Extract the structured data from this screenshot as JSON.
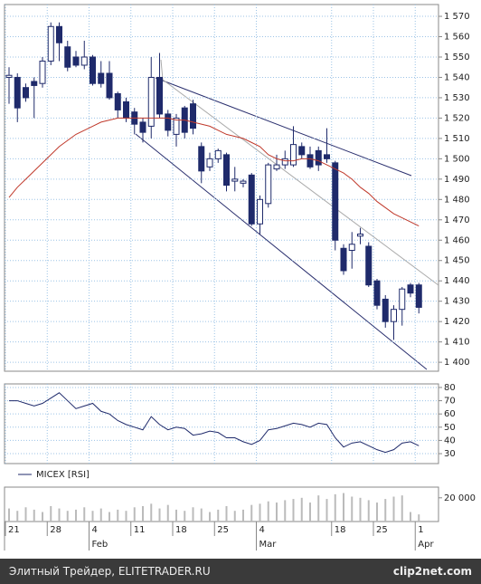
{
  "chart_data": [
    {
      "type": "candlestick",
      "color": "#1f2a6b",
      "open": [
        1540,
        1540,
        1535,
        1538,
        1537,
        1548,
        1565,
        1555,
        1550,
        1546,
        1550,
        1542,
        1542,
        1532,
        1528,
        1523,
        1518,
        1516,
        1540,
        1522,
        1512,
        1525,
        1527,
        1506,
        1496,
        1500,
        1502,
        1489,
        1488,
        1492,
        1468,
        1478,
        1495,
        1497,
        1497,
        1506,
        1502,
        1504,
        1502,
        1498,
        1456,
        1455,
        1462,
        1457,
        1440,
        1431,
        1420,
        1426,
        1438,
        1438
      ],
      "high": [
        1545,
        1542,
        1537,
        1540,
        1550,
        1567,
        1567,
        1558,
        1553,
        1558,
        1551,
        1548,
        1548,
        1533,
        1530,
        1525,
        1520,
        1550,
        1552,
        1524,
        1522,
        1526,
        1529,
        1508,
        1503,
        1505,
        1503,
        1496,
        1490,
        1493,
        1482,
        1498,
        1502,
        1504,
        1516,
        1508,
        1506,
        1506,
        1515,
        1499,
        1458,
        1464,
        1466,
        1459,
        1441,
        1433,
        1428,
        1437,
        1439,
        1439
      ],
      "low": [
        1527,
        1518,
        1528,
        1520,
        1535,
        1546,
        1548,
        1543,
        1545,
        1544,
        1536,
        1535,
        1529,
        1520,
        1518,
        1512,
        1508,
        1510,
        1520,
        1511,
        1506,
        1510,
        1512,
        1488,
        1494,
        1498,
        1484,
        1484,
        1486,
        1467,
        1463,
        1476,
        1494,
        1495,
        1496,
        1500,
        1495,
        1494,
        1498,
        1455,
        1443,
        1446,
        1458,
        1437,
        1426,
        1417,
        1411,
        1418,
        1432,
        1424
      ],
      "close": [
        1541,
        1525,
        1530,
        1536,
        1548,
        1565,
        1557,
        1545,
        1546,
        1550,
        1537,
        1537,
        1530,
        1524,
        1520,
        1517,
        1513,
        1540,
        1522,
        1514,
        1520,
        1513,
        1515,
        1494,
        1500,
        1504,
        1487,
        1490,
        1489,
        1468,
        1480,
        1497,
        1497,
        1500,
        1507,
        1502,
        1496,
        1497,
        1500,
        1460,
        1445,
        1458,
        1463,
        1438,
        1428,
        1420,
        1426,
        1436,
        1434,
        1427
      ],
      "ma": {
        "color": "#c0392b",
        "values": [
          1481,
          1486,
          1490,
          1494,
          1498,
          1502,
          1506,
          1509,
          1512,
          1514,
          1516,
          1518,
          1519,
          1520,
          1520,
          1520,
          1520,
          1520,
          1520,
          1520,
          1519,
          1519,
          1518,
          1517,
          1516,
          1514,
          1512,
          1511,
          1510,
          1508,
          1506,
          1502,
          1500,
          1499,
          1499,
          1500,
          1500,
          1499,
          1497,
          1495,
          1493,
          1490,
          1486,
          1483,
          1479,
          1476,
          1473,
          1471,
          1469,
          1467
        ]
      },
      "ylim": [
        1395.6,
        1575.8
      ],
      "yticks": [
        {
          "value": 1400,
          "label": "1 400"
        },
        {
          "value": 1410,
          "label": "1 410"
        },
        {
          "value": 1420,
          "label": "1 420"
        },
        {
          "value": 1430,
          "label": "1 430"
        },
        {
          "value": 1440,
          "label": "1 440"
        },
        {
          "value": 1450,
          "label": "1 450"
        },
        {
          "value": 1460,
          "label": "1 460"
        },
        {
          "value": 1470,
          "label": "1 470"
        },
        {
          "value": 1480,
          "label": "1 480"
        },
        {
          "value": 1490,
          "label": "1 490"
        },
        {
          "value": 1500,
          "label": "1 500"
        },
        {
          "value": 1510,
          "label": "1 510"
        },
        {
          "value": 1520,
          "label": "1 520"
        },
        {
          "value": 1530,
          "label": "1 530"
        },
        {
          "value": 1540,
          "label": "1 540"
        },
        {
          "value": 1550,
          "label": "1 550"
        },
        {
          "value": 1560,
          "label": "1 560"
        },
        {
          "value": 1570,
          "label": "1 570"
        }
      ],
      "grid": true
    },
    {
      "type": "line",
      "series": [
        {
          "name": "MICEX [RSI]",
          "color": "#1f2a6b",
          "values": [
            70,
            70,
            68,
            66,
            68,
            72,
            76,
            70,
            64,
            66,
            68,
            62,
            60,
            55,
            52,
            50,
            48,
            58,
            52,
            48,
            50,
            49,
            44,
            45,
            47,
            46,
            42,
            42,
            39,
            37,
            40,
            48,
            49,
            51,
            53,
            52,
            50,
            53,
            52,
            42,
            35,
            38,
            39,
            36,
            33,
            31,
            33,
            38,
            39,
            36
          ]
        }
      ],
      "ylim": [
        22.5,
        82.7
      ],
      "yticks": [
        30,
        40,
        50,
        60,
        70,
        80
      ],
      "grid": true
    },
    {
      "type": "bar",
      "color": "#bbbbbb",
      "values": [
        11000,
        9000,
        12000,
        10000,
        8000,
        13000,
        11000,
        9000,
        10000,
        12000,
        9000,
        11000,
        8000,
        10000,
        9000,
        12000,
        13000,
        15000,
        11000,
        14000,
        10000,
        9000,
        12000,
        11000,
        8000,
        10000,
        13000,
        9000,
        10000,
        14000,
        15000,
        17000,
        16000,
        18000,
        19000,
        20000,
        16000,
        22000,
        19000,
        23000,
        24000,
        21000,
        20000,
        18000,
        16000,
        19000,
        21000,
        22000,
        8000,
        6000
      ],
      "ylim": [
        0,
        29000
      ],
      "yticks": [
        {
          "value": 20000,
          "label": "20 000"
        }
      ],
      "xticks": [
        {
          "value": 0,
          "label": "21"
        },
        {
          "value": 5,
          "label": "28"
        },
        {
          "value": 10,
          "label": "4"
        },
        {
          "value": 15,
          "label": "11"
        },
        {
          "value": 20,
          "label": "18"
        },
        {
          "value": 25,
          "label": "25"
        },
        {
          "value": 30,
          "label": "4"
        },
        {
          "value": 39,
          "label": "18"
        },
        {
          "value": 44,
          "label": "25"
        },
        {
          "value": 49,
          "label": "1"
        }
      ],
      "months": [
        {
          "value": 10,
          "label": "Feb"
        },
        {
          "value": 30,
          "label": "Mar"
        },
        {
          "value": 49,
          "label": "Apr"
        }
      ]
    }
  ],
  "footer": {
    "left": "Элитный Трейдер, ELITETRADER.RU",
    "right": "clip2net.com"
  }
}
